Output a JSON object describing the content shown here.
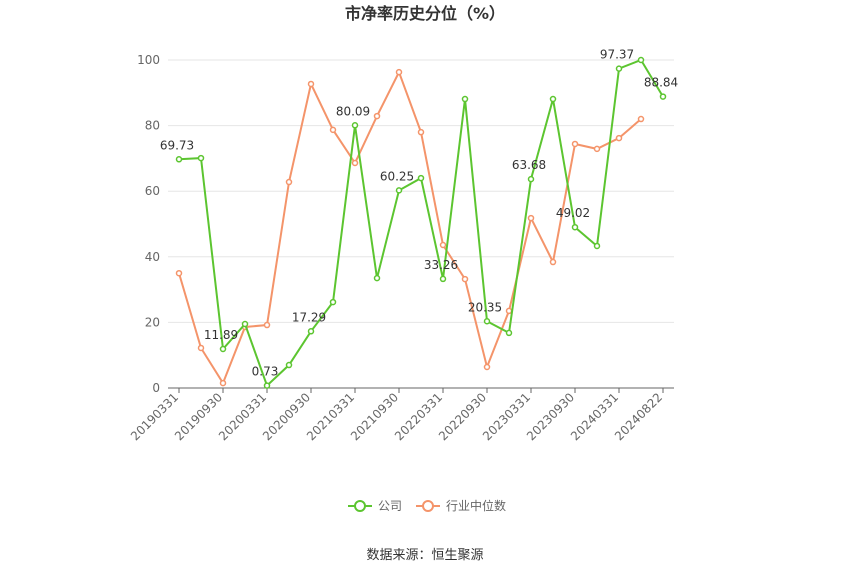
{
  "chart_data": {
    "type": "line",
    "title": "市净率历史分位（%）",
    "categories": [
      "20190331",
      null,
      "20190930",
      null,
      "20200331",
      null,
      "20200930",
      null,
      "20210331",
      null,
      "20210930",
      null,
      "20220331",
      null,
      "20220930",
      null,
      "20230331",
      null,
      "20230930",
      null,
      "20240331",
      null,
      "20240822"
    ],
    "series": [
      {
        "name": "公司",
        "color": "#5cc530",
        "values": [
          69.73,
          70.1,
          11.89,
          19.5,
          0.73,
          7,
          17.29,
          26.2,
          80.09,
          33.5,
          60.25,
          64,
          33.26,
          88.1,
          20.35,
          16.8,
          63.68,
          88.1,
          49.02,
          43.3,
          97.37,
          100,
          88.84
        ]
      },
      {
        "name": "行业中位数",
        "color": "#f4946a",
        "values": [
          35,
          12.2,
          1.5,
          18.6,
          19.2,
          62.8,
          92.7,
          78.7,
          68.6,
          82.9,
          96.3,
          78,
          43.6,
          33.2,
          6.4,
          23.5,
          51.8,
          38.4,
          74.4,
          72.9,
          76.2,
          82,
          null
        ]
      }
    ],
    "ylim": [
      0,
      100
    ],
    "yticks": [
      0,
      20,
      40,
      60,
      80,
      100
    ],
    "grid": true,
    "source": "数据来源：恒生聚源"
  }
}
